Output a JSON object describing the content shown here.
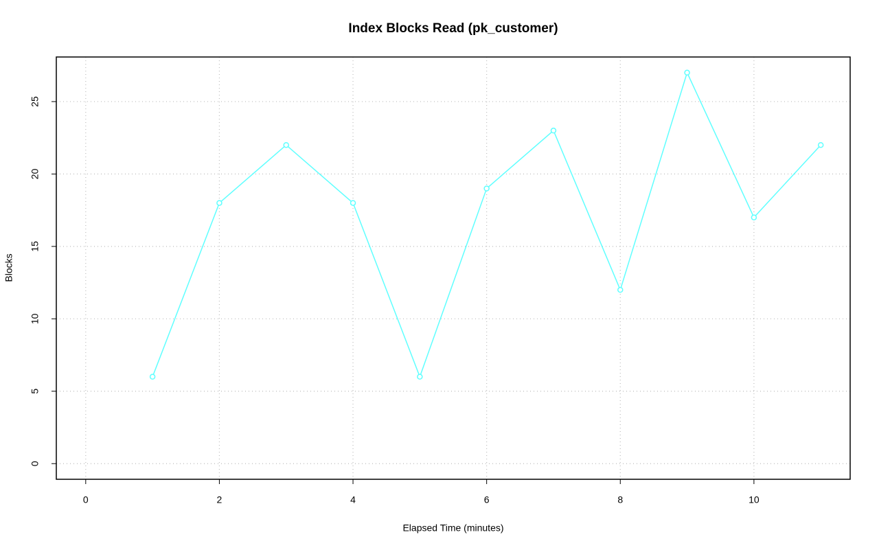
{
  "chart_data": {
    "type": "line",
    "title": "Index Blocks Read (pk_customer)",
    "x_label": "Elapsed Time (minutes)",
    "y_label": "Blocks",
    "x": [
      1,
      2,
      3,
      4,
      5,
      6,
      7,
      8,
      9,
      10,
      11
    ],
    "series": [
      {
        "color": "#5fffff",
        "values": [
          6,
          18,
          22,
          18,
          6,
          19,
          23,
          12,
          27,
          17,
          22
        ]
      }
    ],
    "xlim": [
      -0.44,
      11.44
    ],
    "xticks": [
      0,
      2,
      4,
      6,
      8,
      10
    ],
    "ylim": [
      -1.08,
      28.08
    ],
    "yticks": [
      0,
      5,
      10,
      15,
      20,
      25
    ],
    "grid": true
  }
}
